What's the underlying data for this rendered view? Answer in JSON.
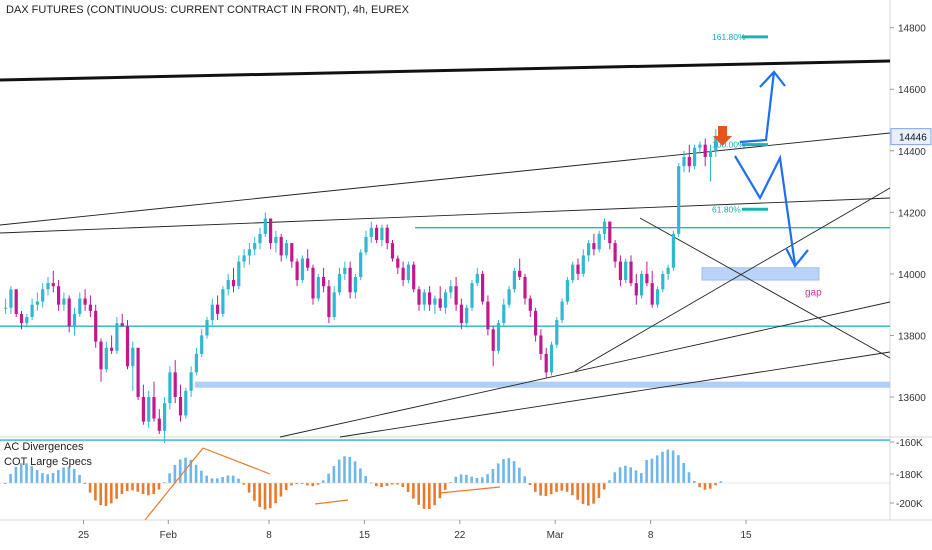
{
  "chart_data": {
    "type": "candlestick",
    "title": "DAX FUTURES (CONTINUOUS: CURRENT CONTRACT IN FRONT), 4h, EUREX",
    "price_axis": {
      "ticks": [
        13600,
        13800,
        14000,
        14200,
        14400,
        14600,
        14800
      ],
      "ylim": [
        13470,
        14890
      ]
    },
    "current_price": {
      "value": 14446,
      "label": "14446"
    },
    "x_axis": {
      "ticks": [
        {
          "label": "25",
          "bar": 15
        },
        {
          "label": "Feb",
          "bar": 31
        },
        {
          "label": "8",
          "bar": 50
        },
        {
          "label": "15",
          "bar": 68
        },
        {
          "label": "22",
          "bar": 86
        },
        {
          "label": "Mar",
          "bar": 104
        },
        {
          "label": "8",
          "bar": 122
        },
        {
          "label": "15",
          "bar": 140
        }
      ]
    },
    "bar_count_range": [
      0,
      160
    ],
    "candles": [
      [
        13890,
        13920,
        13870,
        13890
      ],
      [
        13890,
        13960,
        13870,
        13950
      ],
      [
        13950,
        13940,
        13860,
        13870
      ],
      [
        13870,
        13880,
        13820,
        13840
      ],
      [
        13840,
        13870,
        13830,
        13860
      ],
      [
        13860,
        13920,
        13850,
        13900
      ],
      [
        13900,
        13940,
        13880,
        13910
      ],
      [
        13910,
        13970,
        13890,
        13950
      ],
      [
        13950,
        13990,
        13930,
        13970
      ],
      [
        13970,
        14010,
        13940,
        13960
      ],
      [
        13960,
        13980,
        13880,
        13900
      ],
      [
        13900,
        13940,
        13880,
        13920
      ],
      [
        13920,
        13930,
        13810,
        13830
      ],
      [
        13830,
        13890,
        13800,
        13870
      ],
      [
        13870,
        13940,
        13860,
        13920
      ],
      [
        13920,
        13950,
        13880,
        13900
      ],
      [
        13900,
        13930,
        13860,
        13880
      ],
      [
        13880,
        13900,
        13760,
        13780
      ],
      [
        13780,
        13790,
        13650,
        13690
      ],
      [
        13690,
        13780,
        13680,
        13760
      ],
      [
        13760,
        13800,
        13740,
        13750
      ],
      [
        13750,
        13860,
        13740,
        13840
      ],
      [
        13840,
        13870,
        13830,
        13830
      ],
      [
        13830,
        13850,
        13690,
        13700
      ],
      [
        13700,
        13780,
        13620,
        13760
      ],
      [
        13760,
        13760,
        13590,
        13600
      ],
      [
        13600,
        13640,
        13510,
        13520
      ],
      [
        13520,
        13620,
        13500,
        13600
      ],
      [
        13600,
        13650,
        13520,
        13530
      ],
      [
        13530,
        13560,
        13480,
        13490
      ],
      [
        13490,
        13600,
        13450,
        13580
      ],
      [
        13580,
        13700,
        13560,
        13680
      ],
      [
        13680,
        13720,
        13580,
        13600
      ],
      [
        13600,
        13640,
        13520,
        13540
      ],
      [
        13540,
        13630,
        13530,
        13620
      ],
      [
        13620,
        13700,
        13600,
        13680
      ],
      [
        13680,
        13760,
        13670,
        13740
      ],
      [
        13740,
        13820,
        13730,
        13800
      ],
      [
        13800,
        13860,
        13790,
        13850
      ],
      [
        13850,
        13920,
        13830,
        13900
      ],
      [
        13900,
        13930,
        13850,
        13870
      ],
      [
        13870,
        13960,
        13860,
        13950
      ],
      [
        13950,
        14000,
        13930,
        13980
      ],
      [
        13980,
        14020,
        13940,
        13960
      ],
      [
        13960,
        14060,
        13950,
        14040
      ],
      [
        14040,
        14080,
        14020,
        14060
      ],
      [
        14060,
        14100,
        14030,
        14080
      ],
      [
        14080,
        14120,
        14060,
        14100
      ],
      [
        14100,
        14150,
        14080,
        14130
      ],
      [
        14130,
        14200,
        14120,
        14180
      ],
      [
        14180,
        14170,
        14080,
        14100
      ],
      [
        14100,
        14140,
        14070,
        14120
      ],
      [
        14120,
        14130,
        14040,
        14060
      ],
      [
        14060,
        14110,
        14050,
        14100
      ],
      [
        14100,
        14100,
        14020,
        14040
      ],
      [
        14040,
        14050,
        13960,
        13980
      ],
      [
        13980,
        14060,
        13970,
        14050
      ],
      [
        14050,
        14080,
        14010,
        14020
      ],
      [
        14020,
        14030,
        13900,
        13920
      ],
      [
        13920,
        14000,
        13910,
        13990
      ],
      [
        13990,
        14020,
        13940,
        13960
      ],
      [
        13960,
        13980,
        13840,
        13860
      ],
      [
        13860,
        13960,
        13850,
        13940
      ],
      [
        13940,
        14020,
        13930,
        14000
      ],
      [
        14000,
        14040,
        13980,
        14020
      ],
      [
        14020,
        14040,
        13920,
        13940
      ],
      [
        13940,
        14000,
        13920,
        13990
      ],
      [
        13990,
        14080,
        13980,
        14070
      ],
      [
        14070,
        14140,
        14060,
        14120
      ],
      [
        14120,
        14170,
        14100,
        14150
      ],
      [
        14150,
        14160,
        14100,
        14110
      ],
      [
        14110,
        14160,
        14090,
        14150
      ],
      [
        14150,
        14160,
        14080,
        14100
      ],
      [
        14100,
        14110,
        14040,
        14050
      ],
      [
        14050,
        14060,
        14000,
        14020
      ],
      [
        14020,
        14040,
        13960,
        13980
      ],
      [
        13980,
        14040,
        13970,
        14030
      ],
      [
        14030,
        14040,
        13940,
        13950
      ],
      [
        13950,
        13960,
        13880,
        13900
      ],
      [
        13900,
        13950,
        13880,
        13940
      ],
      [
        13940,
        13960,
        13880,
        13900
      ],
      [
        13900,
        13930,
        13870,
        13920
      ],
      [
        13920,
        13960,
        13880,
        13890
      ],
      [
        13890,
        13950,
        13870,
        13940
      ],
      [
        13940,
        13980,
        13920,
        13960
      ],
      [
        13960,
        13990,
        13880,
        13900
      ],
      [
        13900,
        13920,
        13820,
        13840
      ],
      [
        13840,
        13900,
        13830,
        13890
      ],
      [
        13890,
        13980,
        13880,
        13970
      ],
      [
        13970,
        14020,
        13960,
        14000
      ],
      [
        14000,
        14010,
        13900,
        13910
      ],
      [
        13910,
        13930,
        13800,
        13820
      ],
      [
        13820,
        13830,
        13700,
        13750
      ],
      [
        13750,
        13850,
        13740,
        13840
      ],
      [
        13840,
        13920,
        13830,
        13900
      ],
      [
        13900,
        13960,
        13890,
        13950
      ],
      [
        13950,
        14020,
        13940,
        14010
      ],
      [
        14010,
        14050,
        13980,
        13990
      ],
      [
        13990,
        14000,
        13900,
        13920
      ],
      [
        13920,
        13930,
        13860,
        13880
      ],
      [
        13880,
        13890,
        13780,
        13800
      ],
      [
        13800,
        13820,
        13720,
        13740
      ],
      [
        13740,
        13760,
        13660,
        13680
      ],
      [
        13680,
        13780,
        13670,
        13770
      ],
      [
        13770,
        13860,
        13760,
        13850
      ],
      [
        13850,
        13920,
        13840,
        13910
      ],
      [
        13910,
        13990,
        13900,
        13980
      ],
      [
        13980,
        14040,
        13970,
        14030
      ],
      [
        14030,
        14050,
        13980,
        14000
      ],
      [
        14000,
        14080,
        13990,
        14060
      ],
      [
        14060,
        14110,
        14040,
        14100
      ],
      [
        14100,
        14130,
        14060,
        14080
      ],
      [
        14080,
        14140,
        14070,
        14130
      ],
      [
        14130,
        14180,
        14110,
        14170
      ],
      [
        14170,
        14160,
        14080,
        14100
      ],
      [
        14100,
        14110,
        14020,
        14040
      ],
      [
        14040,
        14060,
        13960,
        13980
      ],
      [
        13980,
        14050,
        13970,
        14040
      ],
      [
        14040,
        14060,
        13960,
        13970
      ],
      [
        13970,
        14000,
        13900,
        13930
      ],
      [
        13930,
        14010,
        13920,
        14000
      ],
      [
        14000,
        14040,
        13960,
        13970
      ],
      [
        13970,
        14010,
        13890,
        13900
      ],
      [
        13900,
        13960,
        13890,
        13950
      ],
      [
        13950,
        14010,
        13940,
        14000
      ],
      [
        14000,
        14030,
        13980,
        14020
      ],
      [
        14020,
        14140,
        14010,
        14130
      ],
      [
        14130,
        14360,
        14120,
        14350
      ],
      [
        14350,
        14400,
        14330,
        14380
      ],
      [
        14380,
        14420,
        14330,
        14350
      ],
      [
        14350,
        14420,
        14340,
        14410
      ],
      [
        14410,
        14430,
        14390,
        14420
      ],
      [
        14420,
        14440,
        14350,
        14380
      ],
      [
        14380,
        14420,
        14300,
        14400
      ],
      [
        14400,
        14470,
        14380,
        14446
      ]
    ],
    "drawings": {
      "fib_levels": [
        {
          "label": "161.80%",
          "value": 14770
        },
        {
          "label": "100.00%",
          "value": 14420
        },
        {
          "label": "61.80%",
          "value": 14210
        }
      ],
      "gap_label": "gap",
      "gap_zone": [
        13980,
        14020
      ],
      "support_zone": [
        13630,
        13650
      ]
    },
    "indicator_labels": [
      "AC Divergences",
      "COT Large Specs"
    ],
    "indicator_axis": {
      "ticks": [
        "-160K",
        "-180K",
        "-200K"
      ]
    }
  }
}
